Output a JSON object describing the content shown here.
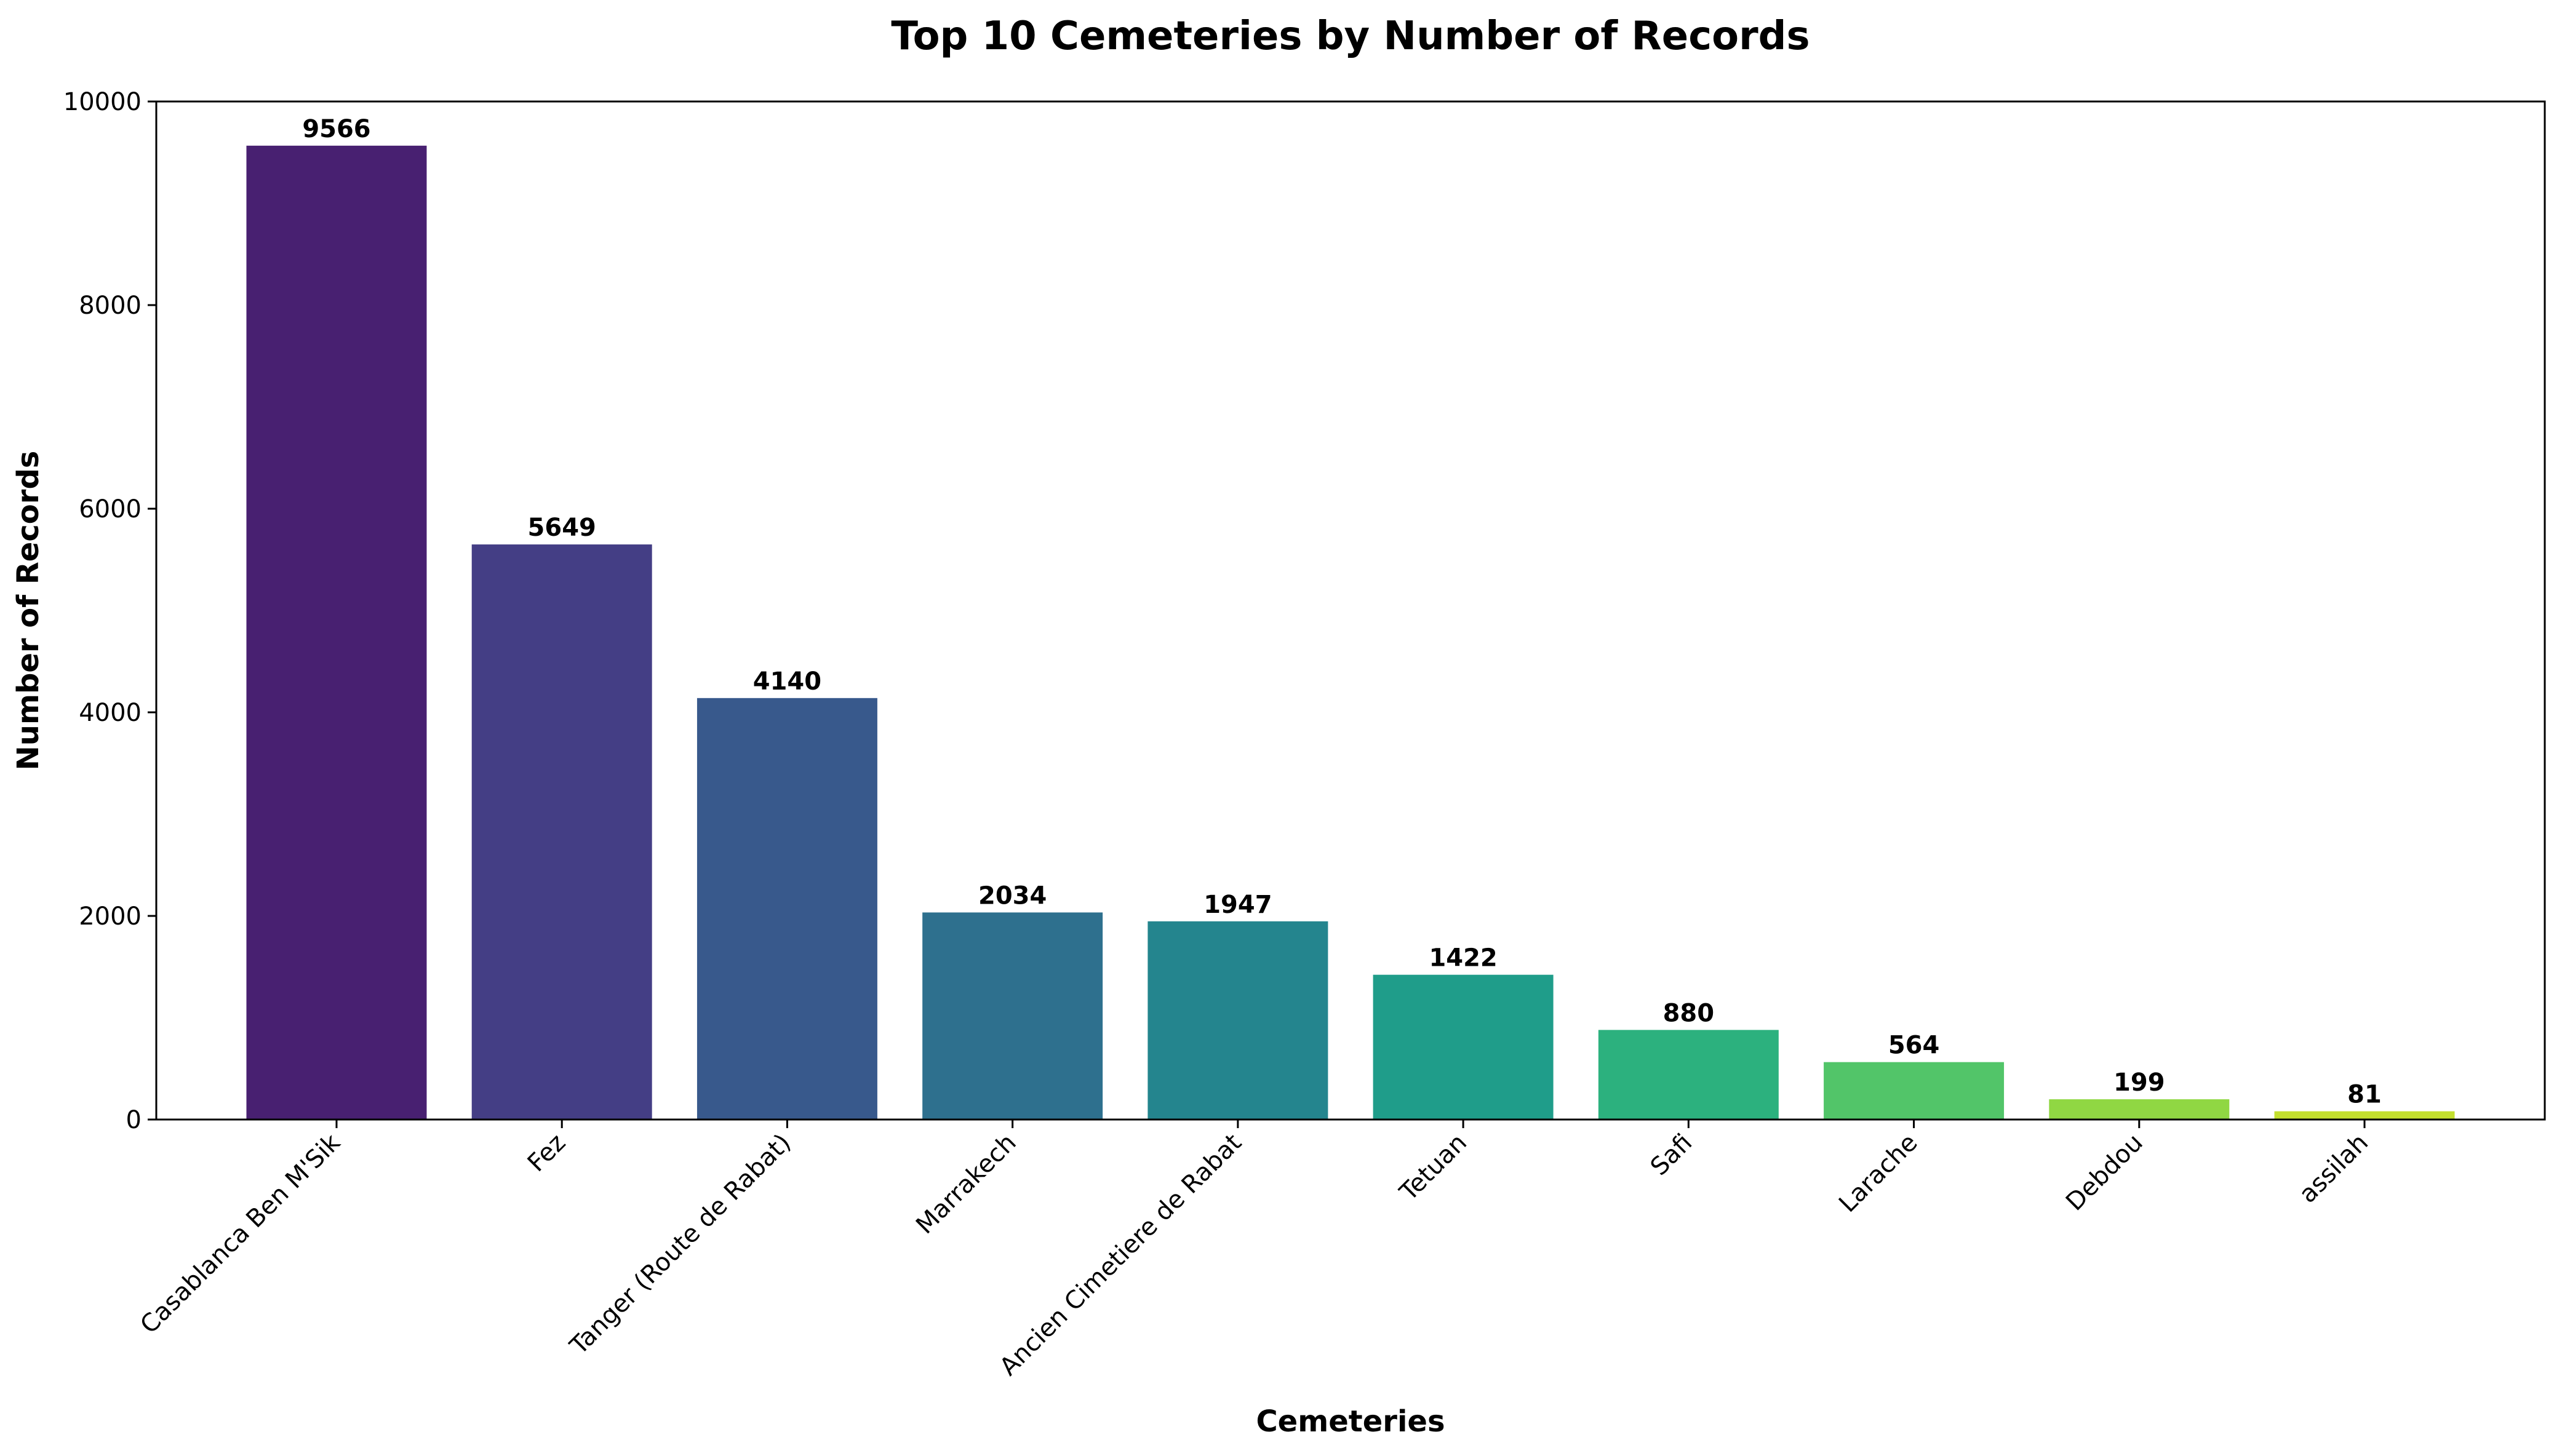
{
  "chart_data": {
    "type": "bar",
    "title": "Top 10 Cemeteries by Number of Records",
    "xlabel": "Cemeteries",
    "ylabel": "Number of Records",
    "categories": [
      "Casablanca Ben M'Sik",
      "Fez",
      "Tanger (Route de Rabat)",
      "Marrakech",
      "Ancien Cimetiere de Rabat",
      "Tetuan",
      "Safi",
      "Larache",
      "Debdou",
      "assilah"
    ],
    "values": [
      9566,
      5649,
      4140,
      2034,
      1947,
      1422,
      880,
      564,
      199,
      81
    ],
    "colors": [
      "#482071",
      "#443e85",
      "#38598c",
      "#2e708e",
      "#24858e",
      "#1f9d8a",
      "#2cb17e",
      "#52c569",
      "#90d743",
      "#c3df2e"
    ],
    "ylim": [
      0,
      10000
    ],
    "yticks": [
      0,
      2000,
      4000,
      6000,
      8000,
      10000
    ],
    "grid": false,
    "legend": "none"
  }
}
